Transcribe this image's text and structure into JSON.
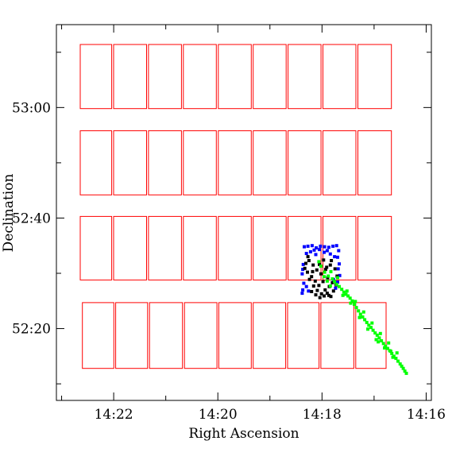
{
  "chart_data": {
    "type": "scatter",
    "title": "",
    "xlabel": "Right Ascension",
    "ylabel": "Declination",
    "x_units": "RA minutes past 14h",
    "y_units": "Dec arcminutes past 52°",
    "xlim": [
      23.1,
      15.9
    ],
    "ylim": [
      7,
      75
    ],
    "x_ticks": [
      {
        "value": 22,
        "label": "14:22"
      },
      {
        "value": 20,
        "label": "14:20"
      },
      {
        "value": 18,
        "label": "14:18"
      },
      {
        "value": 16,
        "label": "14:16"
      }
    ],
    "y_ticks": [
      {
        "value": 20,
        "label": "52:20"
      },
      {
        "value": 40,
        "label": "52:40"
      },
      {
        "value": 60,
        "label": "53:00"
      }
    ],
    "colors": {
      "field": "#ff0000",
      "blue": "#0000ff",
      "black": "#000000",
      "green": "#00ff00",
      "frame": "#000000"
    },
    "field_rows": [
      {
        "dec": [
          59.8,
          71.4
        ],
        "ra_edges": [
          22.66,
          22.02,
          21.35,
          20.68,
          20.01,
          19.34,
          18.67,
          18.0,
          17.33,
          16.65
        ]
      },
      {
        "dec": [
          44.2,
          55.8
        ],
        "ra_edges": [
          22.66,
          22.02,
          21.35,
          20.68,
          20.01,
          19.34,
          18.67,
          18.0,
          17.33,
          16.65
        ]
      },
      {
        "dec": [
          28.8,
          40.3
        ],
        "ra_edges": [
          22.66,
          22.02,
          21.35,
          20.68,
          20.01,
          19.34,
          18.67,
          18.0,
          17.33,
          16.65
        ]
      },
      {
        "dec": [
          12.8,
          24.7
        ],
        "ra_edges": [
          22.62,
          21.98,
          21.33,
          20.66,
          20.0,
          19.34,
          18.68,
          18.04,
          17.37,
          16.75
        ]
      }
    ],
    "series": [
      {
        "color": "blue",
        "points": [
          [
            18.34,
            34.8
          ],
          [
            18.27,
            34.9
          ],
          [
            18.19,
            35.0
          ],
          [
            18.11,
            34.6
          ],
          [
            18.03,
            34.9
          ],
          [
            17.95,
            34.8
          ],
          [
            17.87,
            34.7
          ],
          [
            17.79,
            34.9
          ],
          [
            17.72,
            35.0
          ],
          [
            18.36,
            31.6
          ],
          [
            18.37,
            30.7
          ],
          [
            18.38,
            29.9
          ],
          [
            18.35,
            28.2
          ],
          [
            18.37,
            27.0
          ],
          [
            18.38,
            26.4
          ],
          [
            17.68,
            34.1
          ],
          [
            17.7,
            32.9
          ],
          [
            17.67,
            31.7
          ],
          [
            17.69,
            30.8
          ],
          [
            17.66,
            29.6
          ],
          [
            17.7,
            28.4
          ],
          [
            18.3,
            33.6
          ],
          [
            18.22,
            33.9
          ],
          [
            18.15,
            34.2
          ],
          [
            17.96,
            33.8
          ],
          [
            17.9,
            34.1
          ],
          [
            17.84,
            33.5
          ],
          [
            17.76,
            33.0
          ],
          [
            18.26,
            26.8
          ],
          [
            18.3,
            27.6
          ],
          [
            17.74,
            27.3
          ],
          [
            17.78,
            28.9
          ],
          [
            18.05,
            34.3
          ],
          [
            18.12,
            33.4
          ]
        ]
      },
      {
        "color": "black",
        "points": [
          [
            18.31,
            31.8
          ],
          [
            18.25,
            32.3
          ],
          [
            18.17,
            31.5
          ],
          [
            18.1,
            30.6
          ],
          [
            18.02,
            29.9
          ],
          [
            17.93,
            30.7
          ],
          [
            17.84,
            31.5
          ],
          [
            17.75,
            30.8
          ],
          [
            17.71,
            29.5
          ],
          [
            18.28,
            30.2
          ],
          [
            18.2,
            29.4
          ],
          [
            18.13,
            28.6
          ],
          [
            18.06,
            27.8
          ],
          [
            17.98,
            28.5
          ],
          [
            17.89,
            29.2
          ],
          [
            17.8,
            28.3
          ],
          [
            17.73,
            27.9
          ],
          [
            18.24,
            28.9
          ],
          [
            18.16,
            27.7
          ],
          [
            18.09,
            26.9
          ],
          [
            18.01,
            26.3
          ],
          [
            17.94,
            27.0
          ],
          [
            17.86,
            27.6
          ],
          [
            17.78,
            26.8
          ],
          [
            18.12,
            26.1
          ],
          [
            18.04,
            25.6
          ],
          [
            17.96,
            25.9
          ],
          [
            17.9,
            26.4
          ],
          [
            17.83,
            25.8
          ],
          [
            18.2,
            26.7
          ],
          [
            18.33,
            30.9
          ],
          [
            18.27,
            33.0
          ],
          [
            18.05,
            31.6
          ],
          [
            17.97,
            32.4
          ],
          [
            17.91,
            31.1
          ],
          [
            17.82,
            32.3
          ],
          [
            17.87,
            26.0
          ],
          [
            18.18,
            30.3
          ]
        ]
      },
      {
        "color": "green",
        "points": [
          [
            18.06,
            32.1
          ],
          [
            18.02,
            31.3
          ],
          [
            17.95,
            30.2
          ],
          [
            17.88,
            29.5
          ],
          [
            17.83,
            30.3
          ],
          [
            17.8,
            29.0
          ],
          [
            17.76,
            28.5
          ],
          [
            17.72,
            28.0
          ],
          [
            17.67,
            27.6
          ],
          [
            17.62,
            27.1
          ],
          [
            17.58,
            26.6
          ],
          [
            17.54,
            26.2
          ],
          [
            17.5,
            25.9
          ],
          [
            17.46,
            25.5
          ],
          [
            17.42,
            25.0
          ],
          [
            17.38,
            24.4
          ],
          [
            17.34,
            23.8
          ],
          [
            17.3,
            23.2
          ],
          [
            17.26,
            22.6
          ],
          [
            17.22,
            22.1
          ],
          [
            17.18,
            21.6
          ],
          [
            17.14,
            21.1
          ],
          [
            17.1,
            20.6
          ],
          [
            17.06,
            20.2
          ],
          [
            17.02,
            19.7
          ],
          [
            16.98,
            19.2
          ],
          [
            16.94,
            18.8
          ],
          [
            16.9,
            18.3
          ],
          [
            16.86,
            17.8
          ],
          [
            16.82,
            17.3
          ],
          [
            16.78,
            16.8
          ],
          [
            16.74,
            16.4
          ],
          [
            16.7,
            16.0
          ],
          [
            16.66,
            15.5
          ],
          [
            16.62,
            15.0
          ],
          [
            16.58,
            14.6
          ],
          [
            16.54,
            14.1
          ],
          [
            16.5,
            13.6
          ],
          [
            16.47,
            13.2
          ],
          [
            16.44,
            12.8
          ],
          [
            16.41,
            12.3
          ],
          [
            16.38,
            11.9
          ],
          [
            17.6,
            26.0
          ],
          [
            17.52,
            26.8
          ],
          [
            17.45,
            24.6
          ],
          [
            17.36,
            24.9
          ],
          [
            17.28,
            22.0
          ],
          [
            17.2,
            23.0
          ],
          [
            17.12,
            19.9
          ],
          [
            17.04,
            21.0
          ],
          [
            16.96,
            18.0
          ],
          [
            16.88,
            19.1
          ],
          [
            16.8,
            16.5
          ],
          [
            16.72,
            17.4
          ],
          [
            16.64,
            14.8
          ],
          [
            16.56,
            15.6
          ],
          [
            17.9,
            28.6
          ],
          [
            17.84,
            27.7
          ],
          [
            17.96,
            29.4
          ],
          [
            17.7,
            29.2
          ],
          [
            16.68,
            15.9
          ],
          [
            16.92,
            17.6
          ]
        ]
      }
    ]
  }
}
